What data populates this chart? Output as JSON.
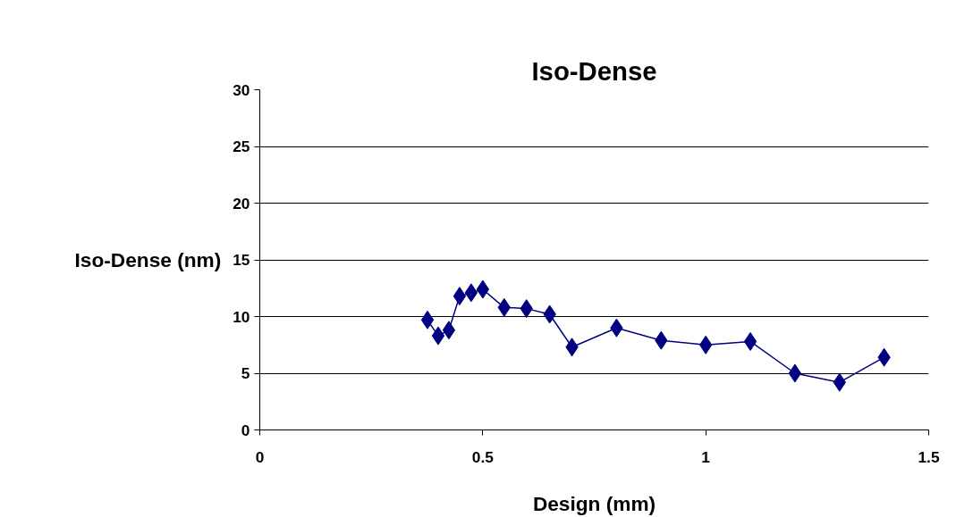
{
  "chart_data": {
    "type": "line",
    "title": "Iso-Dense",
    "xlabel": "Design (mm)",
    "ylabel": "Iso-Dense (nm)",
    "x": [
      0.376,
      0.4,
      0.424,
      0.448,
      0.474,
      0.5,
      0.548,
      0.598,
      0.65,
      0.7,
      0.8,
      0.9,
      1.0,
      1.1,
      1.2,
      1.3,
      1.4
    ],
    "series": [
      {
        "color": "#000080",
        "values": [
          9.7,
          8.3,
          8.8,
          11.8,
          12.1,
          12.4,
          10.8,
          10.7,
          10.2,
          7.3,
          9.0,
          7.9,
          7.5,
          7.8,
          5.0,
          4.2,
          6.4
        ]
      }
    ],
    "xlim": [
      0,
      1.5
    ],
    "xticks": [
      0,
      0.5,
      1,
      1.5
    ],
    "ylim": [
      0,
      30
    ],
    "yticks": [
      0,
      5,
      10,
      15,
      20,
      25,
      30
    ],
    "grid": "y",
    "marker": "diamond",
    "line_style": "solid"
  }
}
